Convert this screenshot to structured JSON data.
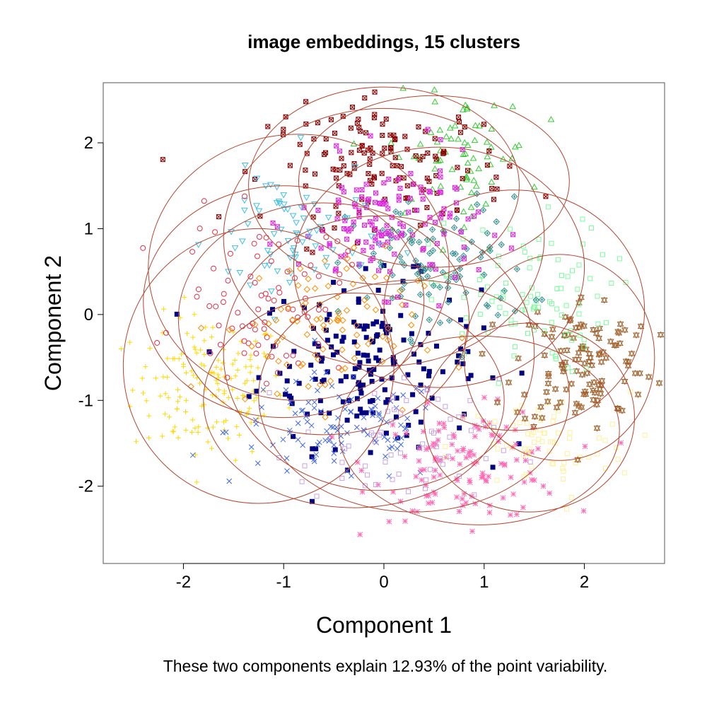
{
  "chart_data": {
    "type": "scatter",
    "title": "image embeddings, 15 clusters",
    "xlabel": "Component 1",
    "ylabel": "Component 2",
    "caption": "These two components explain 12.93% of the point variability.",
    "xlim": [
      -2.8,
      2.8
    ],
    "ylim": [
      -2.9,
      2.7
    ],
    "xticks": [
      -2,
      -1,
      0,
      1,
      2
    ],
    "yticks": [
      -2,
      -1,
      0,
      1,
      2
    ],
    "xtick_labels": [
      "-2",
      "-1",
      "0",
      "1",
      "2"
    ],
    "ytick_labels": [
      "-2",
      "-1",
      "0",
      "1",
      "2"
    ],
    "grid": false,
    "legend": "none",
    "ellipse_color": "#b5452f",
    "clusters": [
      {
        "id": 1,
        "color": "#ffd700",
        "marker": "plus",
        "center": [
          -1.75,
          -0.85
        ],
        "spread": [
          0.38,
          0.42
        ],
        "n": 150,
        "ellipse": {
          "cx": -1.25,
          "cy": -0.6,
          "rx": 1.35,
          "ry": 1.6
        }
      },
      {
        "id": 2,
        "color": "#000080",
        "marker": "square-fill",
        "center": [
          -0.15,
          -0.55
        ],
        "spread": [
          0.55,
          0.48
        ],
        "n": 170,
        "ellipse": {
          "cx": -0.05,
          "cy": -0.45,
          "rx": 1.55,
          "ry": 1.6
        }
      },
      {
        "id": 3,
        "color": "#4169e1",
        "marker": "x",
        "center": [
          -0.45,
          -1.35
        ],
        "spread": [
          0.55,
          0.32
        ],
        "n": 110,
        "ellipse": {
          "cx": -0.3,
          "cy": -1.0,
          "rx": 1.5,
          "ry": 1.25
        }
      },
      {
        "id": 4,
        "color": "#ff69b4",
        "marker": "asterisk",
        "center": [
          0.85,
          -1.75
        ],
        "spread": [
          0.48,
          0.32
        ],
        "n": 130,
        "ellipse": {
          "cx": 0.95,
          "cy": -1.35,
          "rx": 1.4,
          "ry": 1.1
        }
      },
      {
        "id": 5,
        "color": "#fff09c",
        "marker": "square",
        "center": [
          1.55,
          -1.55
        ],
        "spread": [
          0.45,
          0.32
        ],
        "n": 70,
        "ellipse": {
          "cx": 1.45,
          "cy": -1.2,
          "rx": 1.05,
          "ry": 1.1
        }
      },
      {
        "id": 6,
        "color": "#a0622d",
        "marker": "star6",
        "center": [
          2.0,
          -0.55
        ],
        "spread": [
          0.35,
          0.4
        ],
        "n": 120,
        "ellipse": {
          "cx": 1.75,
          "cy": -0.5,
          "rx": 0.95,
          "ry": 1.2
        }
      },
      {
        "id": 7,
        "color": "#7cfc9c",
        "marker": "square",
        "center": [
          1.35,
          0.2
        ],
        "spread": [
          0.45,
          0.45
        ],
        "n": 100,
        "ellipse": {
          "cx": 1.3,
          "cy": 0.05,
          "rx": 1.3,
          "ry": 1.4
        }
      },
      {
        "id": 8,
        "color": "#2e8b8b",
        "marker": "diamond-x",
        "center": [
          0.55,
          0.55
        ],
        "spread": [
          0.45,
          0.4
        ],
        "n": 100,
        "ellipse": {
          "cx": 0.55,
          "cy": 0.55,
          "rx": 1.45,
          "ry": 1.4
        }
      },
      {
        "id": 9,
        "color": "#32cd32",
        "marker": "triangle",
        "center": [
          0.75,
          1.85
        ],
        "spread": [
          0.35,
          0.35
        ],
        "n": 70,
        "ellipse": {
          "cx": 0.5,
          "cy": 1.55,
          "rx": 1.35,
          "ry": 1.0
        }
      },
      {
        "id": 10,
        "color": "#8b0000",
        "marker": "square-x",
        "center": [
          0.05,
          1.75
        ],
        "spread": [
          0.6,
          0.35
        ],
        "n": 140,
        "ellipse": {
          "cx": 0.0,
          "cy": 1.5,
          "rx": 1.35,
          "ry": 1.15
        }
      },
      {
        "id": 11,
        "color": "#e026e0",
        "marker": "square-x",
        "center": [
          0.05,
          1.05
        ],
        "spread": [
          0.45,
          0.38
        ],
        "n": 140,
        "ellipse": {
          "cx": 0.0,
          "cy": 0.9,
          "rx": 1.6,
          "ry": 1.5
        }
      },
      {
        "id": 12,
        "color": "#3fbfe6",
        "marker": "triangle-down",
        "center": [
          -0.95,
          0.9
        ],
        "spread": [
          0.4,
          0.45
        ],
        "n": 70,
        "ellipse": {
          "cx": -0.85,
          "cy": 0.55,
          "rx": 1.5,
          "ry": 1.55
        }
      },
      {
        "id": 13,
        "color": "#e0304a",
        "marker": "circle",
        "center": [
          -1.2,
          0.2
        ],
        "spread": [
          0.4,
          0.45
        ],
        "n": 80,
        "ellipse": {
          "cx": -1.0,
          "cy": 0.15,
          "rx": 1.4,
          "ry": 1.35
        }
      },
      {
        "id": 14,
        "color": "#ff8c00",
        "marker": "diamond",
        "center": [
          -0.65,
          -0.15
        ],
        "spread": [
          0.5,
          0.45
        ],
        "n": 90,
        "ellipse": {
          "cx": -0.6,
          "cy": -0.05,
          "rx": 1.45,
          "ry": 1.35
        }
      },
      {
        "id": 15,
        "color": "#c8a2e6",
        "marker": "square",
        "center": [
          0.15,
          -1.55
        ],
        "spread": [
          0.5,
          0.4
        ],
        "n": 60,
        "ellipse": {
          "cx": 0.3,
          "cy": -0.95,
          "rx": 1.55,
          "ry": 1.35
        }
      }
    ]
  }
}
